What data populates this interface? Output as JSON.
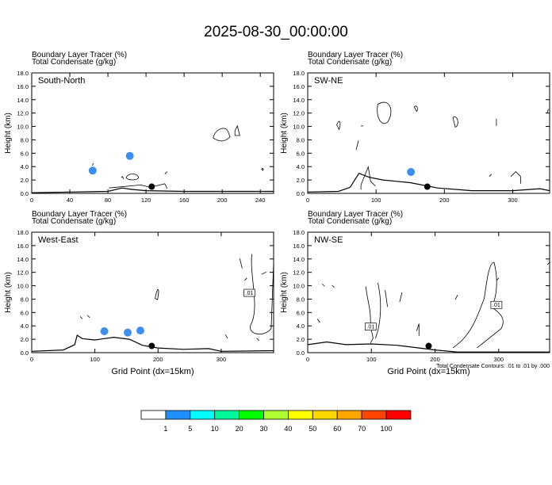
{
  "title": "2025-08-30_00:00:00",
  "panels": [
    {
      "line1": "Boundary Layer Tracer   (%)",
      "line2": "Total Condensate   (g/kg)",
      "label": "South-North",
      "ylabel": "Height (km)",
      "xlabel": "",
      "footnote": ""
    },
    {
      "line1": "Boundary Layer Tracer   (%)",
      "line2": "Total Condensate   (g/kg)",
      "label": "SW-NE",
      "ylabel": "Height (km)",
      "xlabel": "",
      "footnote": ""
    },
    {
      "line1": "Boundary Layer Tracer   (%)",
      "line2": "Total Condensate   (g/kg)",
      "label": "West-East",
      "ylabel": "Height (km)",
      "xlabel": "Grid Point (dx=15km)",
      "footnote": ""
    },
    {
      "line1": "Boundary Layer Tracer   (%)",
      "line2": "Total Condensate   (g/kg)",
      "label": "NW-SE",
      "ylabel": "Height (km)",
      "xlabel": "Grid Point (dx=15km)",
      "footnote": "Total Condensate Contours: .01 to .01 by .000"
    }
  ],
  "chart_data": [
    {
      "type": "contour",
      "label": "South-North",
      "xlim": [
        0,
        254
      ],
      "ylim": [
        0,
        18
      ],
      "xticks": [
        0,
        40,
        80,
        120,
        160,
        200,
        240
      ],
      "yticks": [
        0.0,
        2.0,
        4.0,
        6.0,
        8.0,
        10.0,
        12.0,
        14.0,
        16.0,
        18.0
      ],
      "terrain": [
        [
          0,
          0.1
        ],
        [
          40,
          0.2
        ],
        [
          80,
          0.3
        ],
        [
          95,
          0.8
        ],
        [
          104,
          0.6
        ],
        [
          120,
          0.4
        ],
        [
          160,
          0.3
        ],
        [
          200,
          0.3
        ],
        [
          230,
          0.3
        ],
        [
          254,
          0.3
        ]
      ],
      "tracer": [
        {
          "x": 103,
          "y": 5.6
        },
        {
          "x": 64,
          "y": 3.4
        }
      ],
      "contour_labels": [],
      "marker": {
        "x": 126,
        "y": 1.0
      }
    },
    {
      "type": "contour",
      "label": "SW-NE",
      "xlim": [
        0,
        354
      ],
      "ylim": [
        0,
        18
      ],
      "xticks": [
        0,
        100,
        200,
        300
      ],
      "yticks": [
        0.0,
        2.0,
        4.0,
        6.0,
        8.0,
        10.0,
        12.0,
        14.0,
        16.0,
        18.0
      ],
      "terrain": [
        [
          0,
          0.2
        ],
        [
          45,
          0.3
        ],
        [
          62,
          0.9
        ],
        [
          75,
          3.0
        ],
        [
          90,
          2.4
        ],
        [
          110,
          2.0
        ],
        [
          150,
          1.6
        ],
        [
          190,
          0.8
        ],
        [
          240,
          0.4
        ],
        [
          300,
          0.4
        ],
        [
          340,
          0.7
        ],
        [
          354,
          0.4
        ]
      ],
      "tracer": [
        {
          "x": 151,
          "y": 3.2
        }
      ],
      "contour_labels": [],
      "marker": {
        "x": 175,
        "y": 1.0
      }
    },
    {
      "type": "contour",
      "label": "West-East",
      "xlim": [
        0,
        383
      ],
      "ylim": [
        0,
        18
      ],
      "xticks": [
        0,
        100,
        200,
        300
      ],
      "yticks": [
        0.0,
        2.0,
        4.0,
        6.0,
        8.0,
        10.0,
        12.0,
        14.0,
        16.0,
        18.0
      ],
      "terrain": [
        [
          0,
          0.2
        ],
        [
          50,
          0.4
        ],
        [
          68,
          1.2
        ],
        [
          72,
          2.6
        ],
        [
          80,
          2.1
        ],
        [
          100,
          1.9
        ],
        [
          130,
          2.3
        ],
        [
          155,
          2.0
        ],
        [
          175,
          1.1
        ],
        [
          200,
          0.7
        ],
        [
          240,
          0.5
        ],
        [
          280,
          0.6
        ],
        [
          300,
          0.2
        ],
        [
          383,
          0.3
        ]
      ],
      "tracer": [
        {
          "x": 115,
          "y": 3.2
        },
        {
          "x": 152,
          "y": 3.0
        },
        {
          "x": 172,
          "y": 3.3
        }
      ],
      "contour_labels": [
        ".01"
      ],
      "marker": {
        "x": 190,
        "y": 1.0
      }
    },
    {
      "type": "contour",
      "label": "NW-SE",
      "xlim": [
        0,
        380
      ],
      "ylim": [
        0,
        18
      ],
      "xticks": [
        0,
        100,
        200,
        300
      ],
      "yticks": [
        0.0,
        2.0,
        4.0,
        6.0,
        8.0,
        10.0,
        12.0,
        14.0,
        16.0,
        18.0
      ],
      "terrain": [
        [
          0,
          1.2
        ],
        [
          30,
          1.6
        ],
        [
          60,
          1.2
        ],
        [
          100,
          1.3
        ],
        [
          140,
          1.1
        ],
        [
          175,
          0.7
        ],
        [
          200,
          0.4
        ],
        [
          235,
          0.1
        ],
        [
          300,
          0.1
        ],
        [
          380,
          0.1
        ]
      ],
      "tracer": [],
      "contour_labels": [
        ".01",
        ".01"
      ],
      "marker": {
        "x": 190,
        "y": 1.0
      }
    }
  ],
  "colorbar": {
    "labels": [
      "1",
      "5",
      "10",
      "20",
      "30",
      "40",
      "50",
      "60",
      "70",
      "100"
    ],
    "colors": [
      "#ffffff",
      "#1e90ff",
      "#00ffff",
      "#00fa9a",
      "#00ff00",
      "#adff2f",
      "#ffff00",
      "#ffd700",
      "#ffa500",
      "#ff4500",
      "#ff0000"
    ]
  }
}
